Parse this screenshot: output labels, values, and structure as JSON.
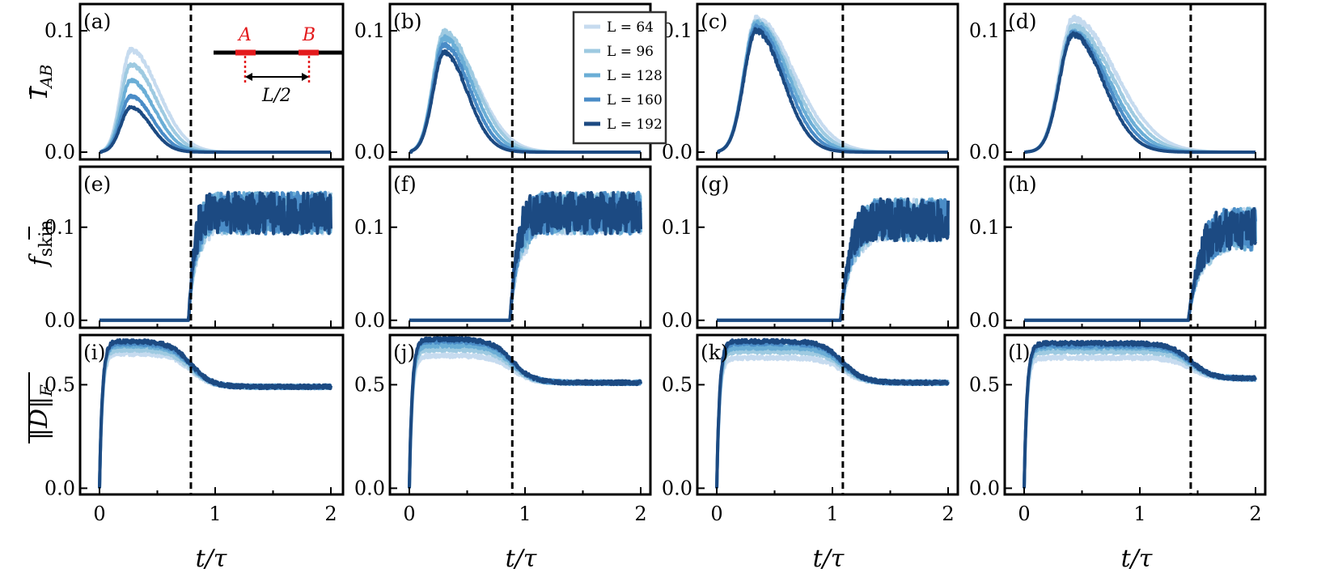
{
  "chart_data": {
    "type": "line",
    "x_range": [
      0,
      2
    ],
    "x_ticks": [
      "0",
      "1",
      "2"
    ],
    "xlabel": "t/τ",
    "legend": {
      "placement": "top-left of panel (b)",
      "entries": [
        "L = 64",
        "L = 96",
        "L = 128",
        "L = 160",
        "L = 192"
      ]
    },
    "series_colors": [
      "#c6dbef",
      "#9ecae1",
      "#6baed6",
      "#4a8cc7",
      "#1c4a82"
    ],
    "vline_t": [
      0.79,
      0.89,
      1.09,
      1.44
    ],
    "inset": {
      "A_label": "A",
      "B_label": "B",
      "distance_label": "L/2"
    },
    "rows": [
      {
        "id": "I_AB",
        "ylabel": "Ī_AB",
        "ylim": [
          -0.006,
          0.122
        ],
        "y_ticks": [
          0.0,
          0.1
        ],
        "y_tick_labels": [
          "0.0",
          "0.1"
        ],
        "panels": [
          {
            "label": "(a)",
            "peak_t": 0.27,
            "peaks": [
              0.084,
              0.072,
              0.059,
              0.046,
              0.037
            ]
          },
          {
            "label": "(b)",
            "peak_t": 0.3,
            "peaks": [
              0.094,
              0.099,
              0.094,
              0.088,
              0.082
            ]
          },
          {
            "label": "(c)",
            "peak_t": 0.34,
            "peaks": [
              0.11,
              0.107,
              0.106,
              0.103,
              0.1
            ]
          },
          {
            "label": "(d)",
            "peak_t": 0.42,
            "peaks": [
              0.11,
              0.104,
              0.099,
              0.098,
              0.097
            ]
          }
        ]
      },
      {
        "id": "f_skin",
        "ylabel": "f̄ skin",
        "ylim": [
          -0.008,
          0.165
        ],
        "y_ticks": [
          0.0,
          0.1
        ],
        "y_tick_labels": [
          "0.0",
          "0.1"
        ],
        "panels": [
          {
            "label": "(e)",
            "plateau": 0.115
          },
          {
            "label": "(f)",
            "plateau": 0.115
          },
          {
            "label": "(g)",
            "plateau": 0.108
          },
          {
            "label": "(h)",
            "plateau": 0.098
          }
        ]
      },
      {
        "id": "D_F",
        "ylabel": "‖D‖_F",
        "ylim": [
          -0.03,
          0.74
        ],
        "y_ticks": [
          0.0,
          0.5
        ],
        "y_tick_labels": [
          "0.0",
          "0.5"
        ],
        "panels": [
          {
            "label": "(i)",
            "max_vals": [
              0.65,
              0.67,
              0.69,
              0.7,
              0.71
            ],
            "steady": 0.49
          },
          {
            "label": "(j)",
            "max_vals": [
              0.64,
              0.67,
              0.69,
              0.71,
              0.72
            ],
            "steady": 0.51
          },
          {
            "label": "(k)",
            "max_vals": [
              0.63,
              0.66,
              0.68,
              0.7,
              0.71
            ],
            "steady": 0.51
          },
          {
            "label": "(l)",
            "max_vals": [
              0.63,
              0.66,
              0.68,
              0.69,
              0.7
            ],
            "steady": 0.53
          }
        ]
      }
    ]
  }
}
